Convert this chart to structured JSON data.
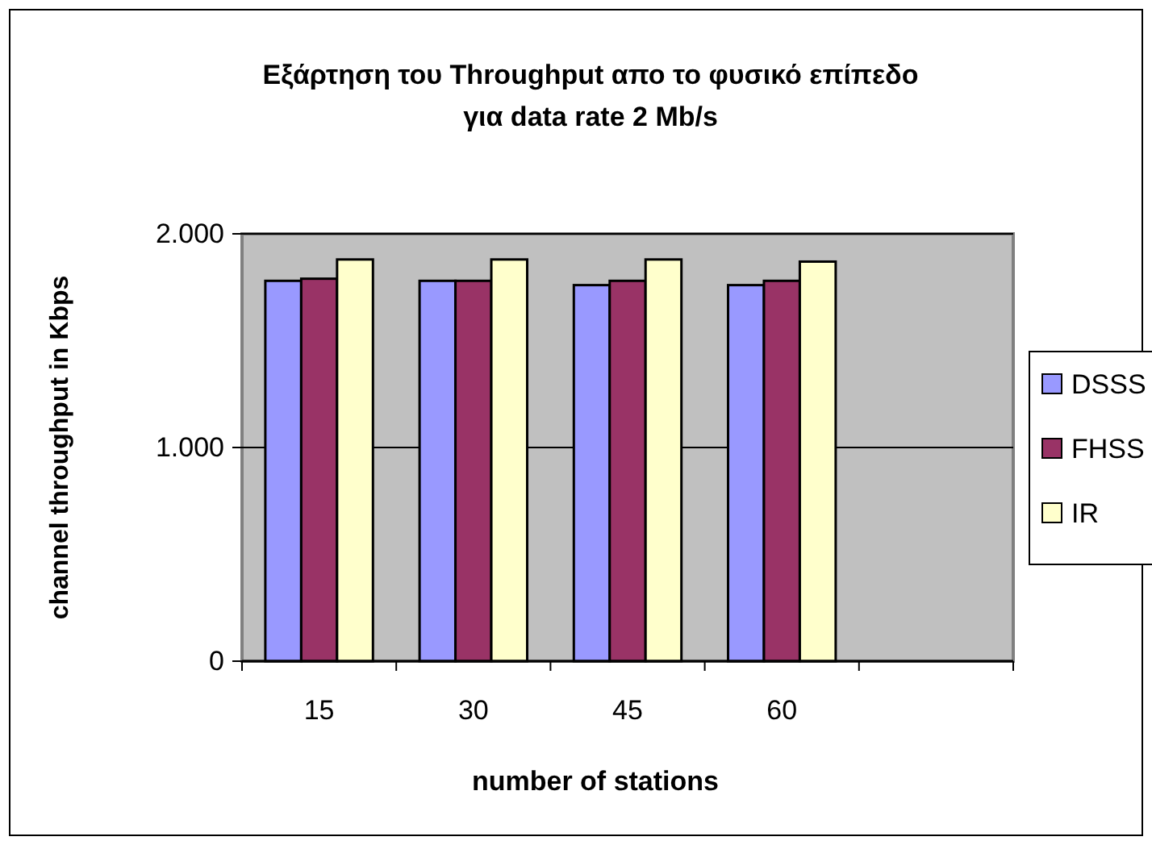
{
  "chart_data": {
    "type": "bar",
    "title": "Εξάρτηση του Throughput απο το φυσικό επίπεδο για data rate 2 Mb/s",
    "xlabel": "number of stations",
    "ylabel": "channel throughput in Kbps",
    "categories": [
      "15",
      "30",
      "45",
      "60",
      null
    ],
    "series": [
      {
        "name": "DSSS",
        "color": "#9999ff",
        "values": [
          1780,
          1780,
          1760,
          1760,
          null
        ]
      },
      {
        "name": "FHSS",
        "color": "#993366",
        "values": [
          1790,
          1780,
          1780,
          1780,
          null
        ]
      },
      {
        "name": "IR",
        "color": "#ffffcc",
        "values": [
          1880,
          1880,
          1880,
          1870,
          null
        ]
      }
    ],
    "ylim": [
      0,
      2000
    ],
    "yticks": [
      0,
      {
        "value": 1000,
        "label": "1.000"
      },
      {
        "value": 2000,
        "label": "2.000"
      }
    ],
    "grid": "y",
    "legend": "right"
  }
}
